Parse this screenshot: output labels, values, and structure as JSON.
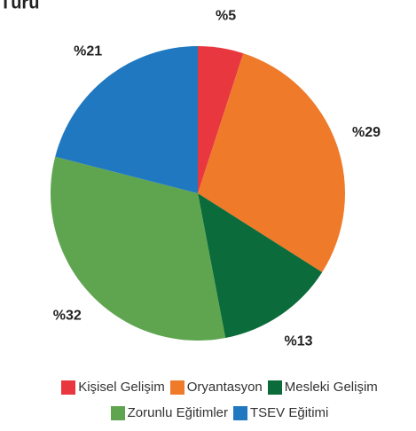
{
  "chart_data": {
    "type": "pie",
    "title": "Türü",
    "categories": [
      "Kişisel Gelişim",
      "Oryantasyon",
      "Mesleki Gelişim",
      "Zorunlu Eğitimler",
      "TSEV Eğitimi"
    ],
    "values": [
      5,
      29,
      13,
      32,
      21
    ],
    "value_labels": [
      "%5",
      "%29",
      "%13",
      "%32",
      "%21"
    ],
    "colors": [
      "#e8373e",
      "#ee7a2a",
      "#0b6b3a",
      "#5fa550",
      "#2079c0"
    ]
  }
}
